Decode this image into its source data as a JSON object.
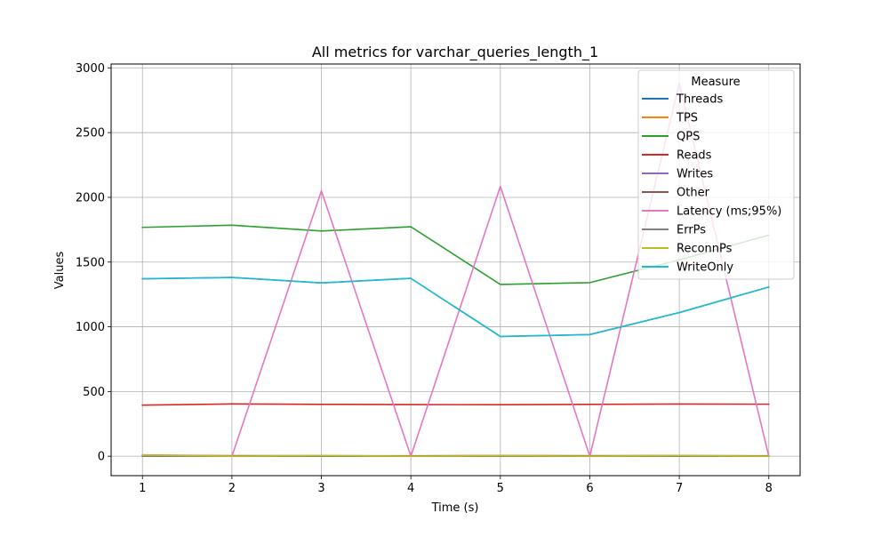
{
  "chart_data": {
    "type": "line",
    "title": "All metrics for varchar_queries_length_1",
    "xlabel": "Time (s)",
    "ylabel": "Values",
    "x": [
      1,
      2,
      3,
      4,
      5,
      6,
      7,
      8
    ],
    "xlim": [
      0.65,
      8.35
    ],
    "ylim": [
      -150,
      3030
    ],
    "xticks": [
      1,
      2,
      3,
      4,
      5,
      6,
      7,
      8
    ],
    "yticks": [
      0,
      500,
      1000,
      1500,
      2000,
      2500,
      3000
    ],
    "grid": true,
    "legend": {
      "title": "Measure",
      "placement": "top-right"
    },
    "series": [
      {
        "name": "Threads",
        "color": "#1f77b4",
        "values": [
          1,
          1,
          1,
          1,
          1,
          1,
          1,
          1
        ]
      },
      {
        "name": "TPS",
        "color": "#ff7f0e",
        "values": [
          10,
          4,
          4,
          2,
          6,
          3,
          6,
          2
        ]
      },
      {
        "name": "QPS",
        "color": "#2ca02c",
        "values": [
          1768,
          1785,
          1740,
          1773,
          1327,
          1341,
          1517,
          1708
        ]
      },
      {
        "name": "Reads",
        "color": "#d62728",
        "values": [
          395,
          404,
          401,
          399,
          398,
          401,
          403,
          402
        ]
      },
      {
        "name": "Writes",
        "color": "#9467bd",
        "values": [
          1371,
          1381,
          1339,
          1374,
          925,
          940,
          1110,
          1307
        ]
      },
      {
        "name": "Other",
        "color": "#8c564b",
        "values": [
          3,
          3,
          3,
          3,
          3,
          3,
          3,
          3
        ]
      },
      {
        "name": "Latency (ms;95%)",
        "color": "#e377c2",
        "values": [
          10,
          0,
          2050,
          0,
          2085,
          0,
          2880,
          0
        ]
      },
      {
        "name": "ErrPs",
        "color": "#7f7f7f",
        "values": [
          0,
          0,
          0,
          0,
          0,
          0,
          0,
          0
        ]
      },
      {
        "name": "ReconnPs",
        "color": "#bcbd22",
        "values": [
          8,
          0,
          5,
          0,
          4,
          0,
          5,
          0
        ]
      },
      {
        "name": "WriteOnly",
        "color": "#17becf",
        "values": [
          1371,
          1381,
          1339,
          1374,
          925,
          940,
          1110,
          1307
        ]
      }
    ]
  }
}
